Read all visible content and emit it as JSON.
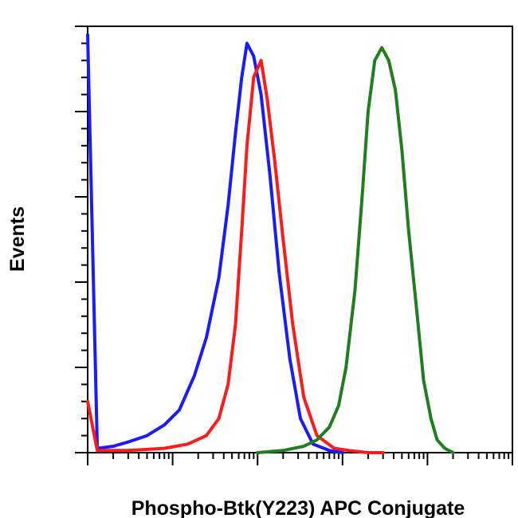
{
  "chart_data": {
    "type": "line",
    "title": "",
    "xlabel": "Phospho-Btk(Y223) APC Conjugate",
    "ylabel": "Events",
    "xscale": "log",
    "xlim": [
      1,
      100000
    ],
    "ylim": [
      0,
      100
    ],
    "grid": false,
    "legend": "none",
    "series": [
      {
        "color": "#1a1aff",
        "x": [
          1,
          1.3,
          2,
          3,
          5,
          8,
          12,
          18,
          25,
          35,
          45,
          55,
          65,
          75,
          90,
          110,
          140,
          180,
          240,
          320,
          450,
          700,
          1000
        ],
        "y": [
          98,
          1,
          1.5,
          2.5,
          4,
          6.5,
          10,
          18,
          27,
          41,
          58,
          75,
          88,
          96,
          93,
          84,
          65,
          42,
          22,
          8,
          2,
          0.5,
          0
        ]
      },
      {
        "color": "#ff1a1a",
        "x": [
          1,
          1.3,
          3,
          8,
          15,
          25,
          35,
          45,
          55,
          65,
          75,
          90,
          110,
          130,
          160,
          200,
          260,
          350,
          500,
          800,
          1200,
          2000,
          3000
        ],
        "y": [
          12,
          0.5,
          0.5,
          1,
          2,
          4,
          8,
          16,
          30,
          52,
          72,
          88,
          92,
          83,
          68,
          50,
          30,
          13,
          4,
          1,
          0.5,
          0,
          0
        ]
      },
      {
        "color": "#1f7f1f",
        "x": [
          100,
          200,
          350,
          500,
          700,
          900,
          1100,
          1400,
          1700,
          2000,
          2400,
          2900,
          3500,
          4200,
          5000,
          6000,
          7500,
          9000,
          11000,
          13000,
          16000,
          20000
        ],
        "y": [
          0,
          0.5,
          1.5,
          3,
          6,
          11,
          20,
          38,
          60,
          80,
          92,
          95,
          92,
          85,
          71,
          52,
          33,
          17,
          8,
          3,
          1,
          0
        ]
      }
    ]
  }
}
